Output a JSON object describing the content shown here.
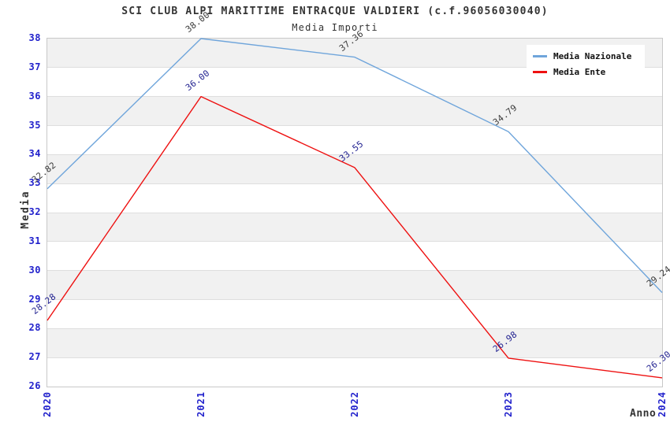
{
  "header": {
    "title": "SCI CLUB ALPI MARITTIME ENTRACQUE VALDIERI (c.f.96056030040)",
    "subtitle": "Media Importi"
  },
  "chart_data": {
    "type": "line",
    "title": "SCI CLUB ALPI MARITTIME ENTRACQUE VALDIERI (c.f.96056030040)",
    "subtitle": "Media Importi",
    "categories": [
      "2020",
      "2021",
      "2022",
      "2023",
      "2024"
    ],
    "series": [
      {
        "name": "Media Nazionale",
        "color": "#6fa5db",
        "label_color": "#3a3a3a",
        "values": [
          32.82,
          38.0,
          37.36,
          34.79,
          29.24
        ]
      },
      {
        "name": "Media Ente",
        "color": "#ee1111",
        "label_color": "#1f1f8f",
        "values": [
          28.28,
          36.0,
          33.55,
          26.98,
          26.3
        ]
      }
    ],
    "xlabel": "Anno",
    "ylabel": "Media",
    "ylim": [
      26,
      38
    ],
    "ytick_step": 1,
    "yticks": [
      26,
      27,
      28,
      29,
      30,
      31,
      32,
      33,
      34,
      35,
      36,
      37,
      38
    ],
    "legend_position": "top-right",
    "grid": "horizontal-bands-alternating",
    "colors": {
      "tick_label": "#2222cc",
      "band_gray": "#f1f1f1",
      "grid_line": "#dedede",
      "plot_border": "#c8c8c8",
      "text_dark": "#333333"
    }
  }
}
